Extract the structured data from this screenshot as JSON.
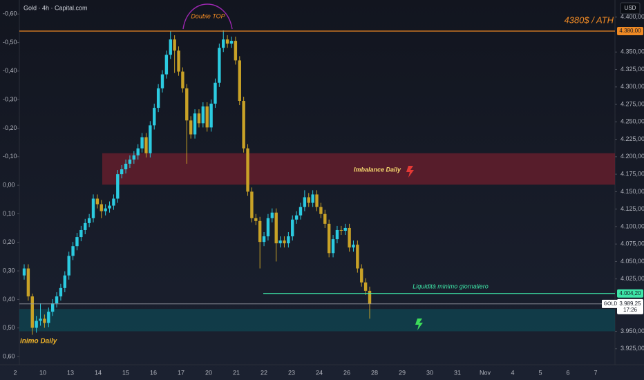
{
  "chart_data": {
    "type": "candlestick",
    "title": "Gold · 4h · Capital.com",
    "currency": "USD",
    "up_color": "#2ccbe0",
    "down_color": "#c9a227",
    "candles": {
      "open": [
        4030,
        4040,
        4000,
        3955,
        3965,
        3968,
        3962,
        3978,
        3990,
        4000,
        4012,
        4030,
        4058,
        4072,
        4085,
        4095,
        4105,
        4112,
        4140,
        4132,
        4122,
        4126,
        4130,
        4140,
        4175,
        4182,
        4190,
        4196,
        4202,
        4212,
        4228,
        4205,
        4245,
        4270,
        4298,
        4318,
        4346,
        4368,
        4352,
        4322,
        4298,
        4252,
        4232,
        4262,
        4248,
        4272,
        4242,
        4276,
        4306,
        4356,
        4368,
        4362,
        4366,
        4338,
        4280,
        4212,
        4150,
        4112,
        4108,
        4078,
        4086,
        4112,
        4120,
        4076,
        4080,
        4076,
        4086,
        4110,
        4116,
        4128,
        4142,
        4134,
        4146,
        4128,
        4118,
        4104,
        4062,
        4082,
        4095,
        4094,
        4098,
        4070,
        4074,
        4040,
        4020,
        4008
      ],
      "high": [
        4046,
        4046,
        4004,
        3972,
        3990,
        3974,
        3984,
        3996,
        4006,
        4018,
        4036,
        4064,
        4078,
        4091,
        4101,
        4111,
        4118,
        4146,
        4146,
        4138,
        4132,
        4136,
        4146,
        4181,
        4188,
        4196,
        4202,
        4208,
        4218,
        4234,
        4234,
        4251,
        4276,
        4304,
        4324,
        4352,
        4380,
        4374,
        4358,
        4328,
        4304,
        4258,
        4268,
        4268,
        4278,
        4278,
        4282,
        4312,
        4362,
        4381,
        4374,
        4372,
        4372,
        4344,
        4286,
        4218,
        4156,
        4118,
        4114,
        4092,
        4118,
        4126,
        4126,
        4086,
        4086,
        4092,
        4116,
        4122,
        4134,
        4152,
        4148,
        4152,
        4152,
        4134,
        4124,
        4110,
        4088,
        4101,
        4101,
        4104,
        4104,
        4080,
        4080,
        4046,
        4026,
        4014
      ],
      "low": [
        4024,
        3994,
        3945,
        3948,
        3958,
        3955,
        3956,
        3972,
        3984,
        3994,
        4006,
        4024,
        4052,
        4066,
        4079,
        4089,
        4099,
        4106,
        4126,
        4112,
        4116,
        4120,
        4124,
        4134,
        4169,
        4176,
        4184,
        4190,
        4196,
        4206,
        4199,
        4199,
        4239,
        4264,
        4292,
        4312,
        4340,
        4320,
        4316,
        4292,
        4190,
        4226,
        4226,
        4242,
        4242,
        4236,
        4236,
        4270,
        4300,
        4350,
        4356,
        4356,
        4332,
        4274,
        4206,
        4144,
        4106,
        4102,
        4040,
        4072,
        4080,
        4106,
        4050,
        4070,
        4070,
        4070,
        4080,
        4104,
        4110,
        4122,
        4128,
        4128,
        4122,
        4112,
        4098,
        4056,
        4056,
        4076,
        4088,
        4088,
        4064,
        4064,
        4034,
        4014,
        4002,
        3968
      ],
      "close": [
        4040,
        4000,
        3955,
        3965,
        3968,
        3962,
        3978,
        3990,
        4000,
        4012,
        4030,
        4058,
        4072,
        4085,
        4095,
        4105,
        4112,
        4140,
        4132,
        4122,
        4126,
        4130,
        4140,
        4175,
        4182,
        4190,
        4196,
        4202,
        4212,
        4228,
        4205,
        4245,
        4270,
        4298,
        4318,
        4346,
        4368,
        4352,
        4322,
        4298,
        4252,
        4232,
        4262,
        4248,
        4272,
        4242,
        4276,
        4306,
        4356,
        4368,
        4362,
        4366,
        4338,
        4280,
        4212,
        4150,
        4112,
        4108,
        4078,
        4086,
        4112,
        4120,
        4076,
        4080,
        4076,
        4086,
        4110,
        4116,
        4128,
        4142,
        4134,
        4146,
        4128,
        4118,
        4104,
        4062,
        4082,
        4095,
        4094,
        4098,
        4070,
        4074,
        4040,
        4020,
        4008,
        3989.25
      ]
    },
    "ylim": [
      3902,
      4424.5
    ],
    "yticks": [
      {
        "value": 4400,
        "label": "4.400,00"
      },
      {
        "value": 4350,
        "label": "4.350,00"
      },
      {
        "value": 4325,
        "label": "4.325,00"
      },
      {
        "value": 4300,
        "label": "4.300,00"
      },
      {
        "value": 4275,
        "label": "4.275,00"
      },
      {
        "value": 4250,
        "label": "4.250,00"
      },
      {
        "value": 4225,
        "label": "4.225,00"
      },
      {
        "value": 4200,
        "label": "4.200,00"
      },
      {
        "value": 4175,
        "label": "4.175,00"
      },
      {
        "value": 4150,
        "label": "4.150,00"
      },
      {
        "value": 4125,
        "label": "4.125,00"
      },
      {
        "value": 4100,
        "label": "4.100,00"
      },
      {
        "value": 4075,
        "label": "4.075,00"
      },
      {
        "value": 4050,
        "label": "4.050,00"
      },
      {
        "value": 4025,
        "label": "4.025,00"
      },
      {
        "value": 3950,
        "label": "3.950,00"
      },
      {
        "value": 3925,
        "label": "3.925,00"
      }
    ],
    "y2lim": [
      -0.649,
      0.629
    ],
    "y2_inverted": true,
    "y2ticks": [
      {
        "value": -0.6,
        "label": "-0,60"
      },
      {
        "value": -0.5,
        "label": "-0,50"
      },
      {
        "value": -0.4,
        "label": "-0,40"
      },
      {
        "value": -0.3,
        "label": "-0,30"
      },
      {
        "value": -0.2,
        "label": "-0,20"
      },
      {
        "value": -0.1,
        "label": "-0,10"
      },
      {
        "value": 0,
        "label": "0,00"
      },
      {
        "value": 0.1,
        "label": "0,10"
      },
      {
        "value": 0.2,
        "label": "0,20"
      },
      {
        "value": 0.3,
        "label": "0,30"
      },
      {
        "value": 0.4,
        "label": "0,40"
      },
      {
        "value": 0.5,
        "label": "0,50"
      },
      {
        "value": 0.6,
        "label": "0,60"
      }
    ],
    "xticks": [
      "2",
      "10",
      "13",
      "14",
      "15",
      "16",
      "17",
      "20",
      "21",
      "22",
      "23",
      "24",
      "26",
      "28",
      "29",
      "30",
      "31",
      "Nov",
      "4",
      "5",
      "6",
      "7"
    ],
    "last_price": {
      "name": "GOLD",
      "value": 3989.25,
      "label": "3.989,25",
      "time": "17:26"
    },
    "annotations": [
      {
        "kind": "line",
        "text": "4380$ / ATH",
        "value": 4380,
        "label": "4.380,00",
        "color": "#f08a24"
      },
      {
        "kind": "line",
        "text": "Liquidità minimo giornaliero",
        "value": 4004.2,
        "label": "4.004,20",
        "color": "#3ee6a8"
      },
      {
        "kind": "zone",
        "text": "Imbalance Daily",
        "from": 4160,
        "to": 4205,
        "color": "#6e1f2d"
      },
      {
        "kind": "zone",
        "text": "inimo Daily",
        "from": 3950,
        "to": 3982,
        "color": "#0f4652"
      },
      {
        "kind": "arc",
        "text": "Double TOP",
        "color": "#9c27b0"
      }
    ]
  }
}
